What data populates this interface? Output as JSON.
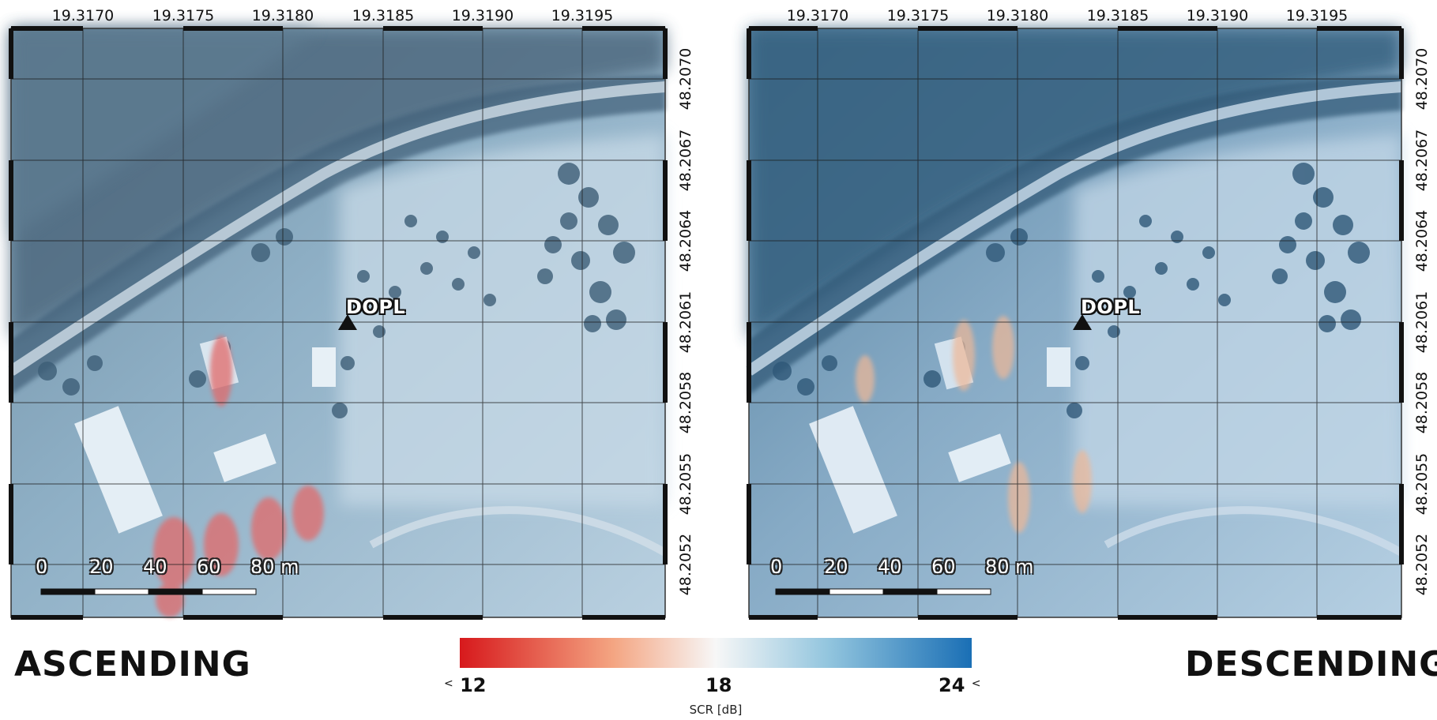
{
  "panels": [
    {
      "id": "ascending",
      "orbit_label": "ASCENDING",
      "lon_ticks": [
        "19.3170",
        "19.3175",
        "19.3180",
        "19.3185",
        "19.3190",
        "19.3195"
      ],
      "lat_ticks": [
        "48.2070",
        "48.2067",
        "48.2064",
        "48.2061",
        "48.2058",
        "48.2055",
        "48.2052"
      ],
      "station": "DOPL",
      "scale_labels": [
        "0",
        "20",
        "40",
        "60",
        "80 m"
      ]
    },
    {
      "id": "descending",
      "orbit_label": "DESCENDING",
      "lon_ticks": [
        "19.3170",
        "19.3175",
        "19.3180",
        "19.3185",
        "19.3190",
        "19.3195"
      ],
      "lat_ticks": [
        "48.2070",
        "48.2067",
        "48.2064",
        "48.2061",
        "48.2058",
        "48.2055",
        "48.2052"
      ],
      "station": "DOPL",
      "scale_labels": [
        "0",
        "20",
        "40",
        "60",
        "80 m"
      ]
    }
  ],
  "colorbar": {
    "title": "SCR [dB]",
    "min_label": "12",
    "mid_label": "18",
    "max_label": "24",
    "low_extend": "<",
    "high_extend": "<",
    "colors": [
      "#d7191c",
      "#f4a582",
      "#f7f7f7",
      "#92c5de",
      "#1a6fb5"
    ]
  }
}
